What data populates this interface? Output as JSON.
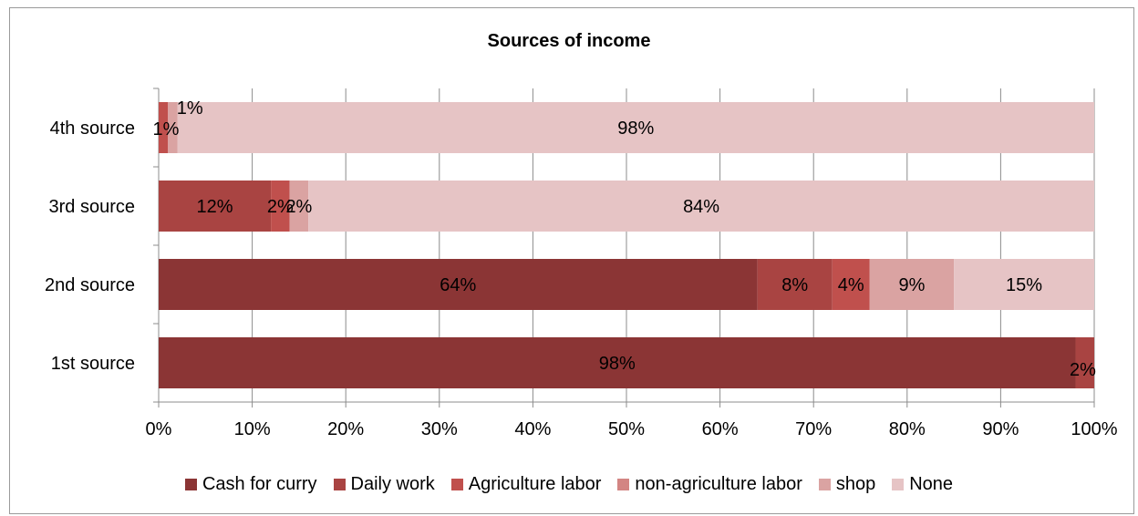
{
  "chart_data": {
    "type": "bar",
    "orientation": "horizontal",
    "stacked": "percent",
    "title": "Sources of income",
    "categories": [
      "1st source",
      "2nd source",
      "3rd source",
      "4th source"
    ],
    "series": [
      {
        "name": "Cash for curry",
        "color": "#8b3535",
        "values": [
          98,
          64,
          0,
          0
        ]
      },
      {
        "name": "Daily work",
        "color": "#a94442",
        "values": [
          2,
          8,
          12,
          0
        ]
      },
      {
        "name": "Agriculture labor",
        "color": "#c0504d",
        "values": [
          0,
          4,
          2,
          1
        ]
      },
      {
        "name": "non-agriculture labor",
        "color": "#d38583",
        "values": [
          0,
          0,
          0,
          0
        ]
      },
      {
        "name": "shop",
        "color": "#daa3a2",
        "values": [
          0,
          9,
          2,
          1
        ]
      },
      {
        "name": "None",
        "color": "#e6c4c5",
        "values": [
          0,
          15,
          84,
          98
        ]
      }
    ],
    "data_labels": [
      {
        "category": "1st source",
        "series": "Cash for curry",
        "text": "98%"
      },
      {
        "category": "1st source",
        "series": "Daily work",
        "text": "2%"
      },
      {
        "category": "2nd source",
        "series": "Cash for curry",
        "text": "64%"
      },
      {
        "category": "2nd source",
        "series": "Daily work",
        "text": "8%"
      },
      {
        "category": "2nd source",
        "series": "Agriculture labor",
        "text": "4%"
      },
      {
        "category": "2nd source",
        "series": "shop",
        "text": "9%"
      },
      {
        "category": "2nd source",
        "series": "None",
        "text": "15%"
      },
      {
        "category": "3rd source",
        "series": "Daily work",
        "text": "12%"
      },
      {
        "category": "3rd source",
        "series": "Agriculture labor",
        "text": "2%"
      },
      {
        "category": "3rd source",
        "series": "shop",
        "text": "2%"
      },
      {
        "category": "3rd source",
        "series": "None",
        "text": "84%"
      },
      {
        "category": "4th source",
        "series": "Agriculture labor",
        "text": "1%"
      },
      {
        "category": "4th source",
        "series": "shop",
        "text": "1%"
      },
      {
        "category": "4th source",
        "series": "None",
        "text": "98%"
      }
    ],
    "x_ticks": [
      "0%",
      "10%",
      "20%",
      "30%",
      "40%",
      "50%",
      "60%",
      "70%",
      "80%",
      "90%",
      "100%"
    ],
    "xlim": [
      0,
      100
    ],
    "grid": "vertical",
    "legend": "bottom"
  }
}
